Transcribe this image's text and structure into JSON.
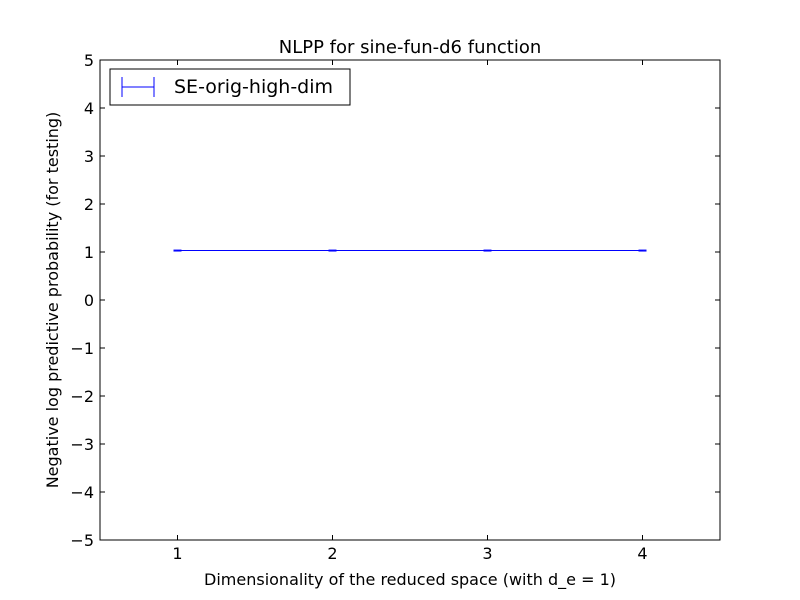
{
  "chart_data": {
    "type": "line",
    "title": "NLPP for sine-fun-d6 function",
    "xlabel": "Dimensionality of the reduced space (with d_e = 1)",
    "ylabel": "Negative log predictive probability (for testing)",
    "xlim": [
      0.5,
      4.5
    ],
    "ylim": [
      -5,
      5
    ],
    "xticks": [
      1,
      2,
      3,
      4
    ],
    "yticks": [
      5,
      4,
      3,
      2,
      1,
      0,
      -1,
      -2,
      -3,
      -4,
      -5
    ],
    "xtick_labels": [
      "1",
      "2",
      "3",
      "4"
    ],
    "ytick_labels": [
      "5",
      "4",
      "3",
      "2",
      "1",
      "0",
      "−1",
      "−2",
      "−3",
      "−4",
      "−5"
    ],
    "grid": false,
    "legend_position": "upper-left",
    "series": [
      {
        "name": "SE-orig-high-dim",
        "color": "#0000ff",
        "marker": "errorbar",
        "x": [
          1,
          2,
          3,
          4
        ],
        "y": [
          1.03,
          1.03,
          1.03,
          1.03
        ],
        "yerr": [
          0.01,
          0.01,
          0.01,
          0.01
        ]
      }
    ]
  }
}
